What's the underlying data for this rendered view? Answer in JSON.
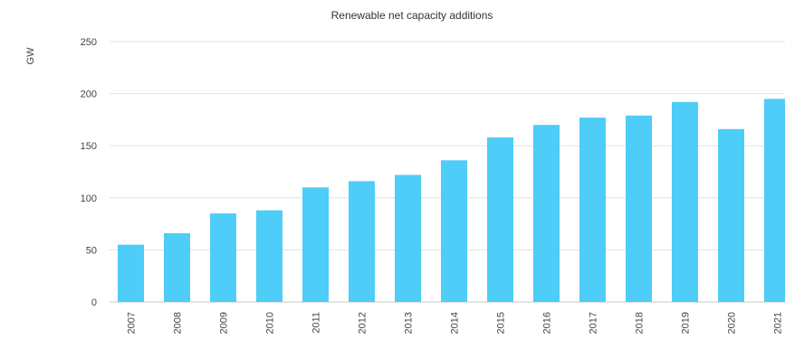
{
  "chart_data": {
    "type": "bar",
    "title": "Renewable net capacity additions",
    "ylabel": "GW",
    "xlabel": "",
    "ylim": [
      0,
      250
    ],
    "yticks": [
      0,
      50,
      100,
      150,
      200,
      250
    ],
    "grid": true,
    "legend": "none",
    "bar_color": "#4dcdf7",
    "categories": [
      "2007",
      "2008",
      "2009",
      "2010",
      "2011",
      "2012",
      "2013",
      "2014",
      "2015",
      "2016",
      "2017",
      "2018",
      "2019",
      "2020",
      "2021"
    ],
    "values": [
      55,
      66,
      85,
      88,
      110,
      116,
      122,
      136,
      158,
      170,
      177,
      179,
      192,
      166,
      195
    ]
  }
}
